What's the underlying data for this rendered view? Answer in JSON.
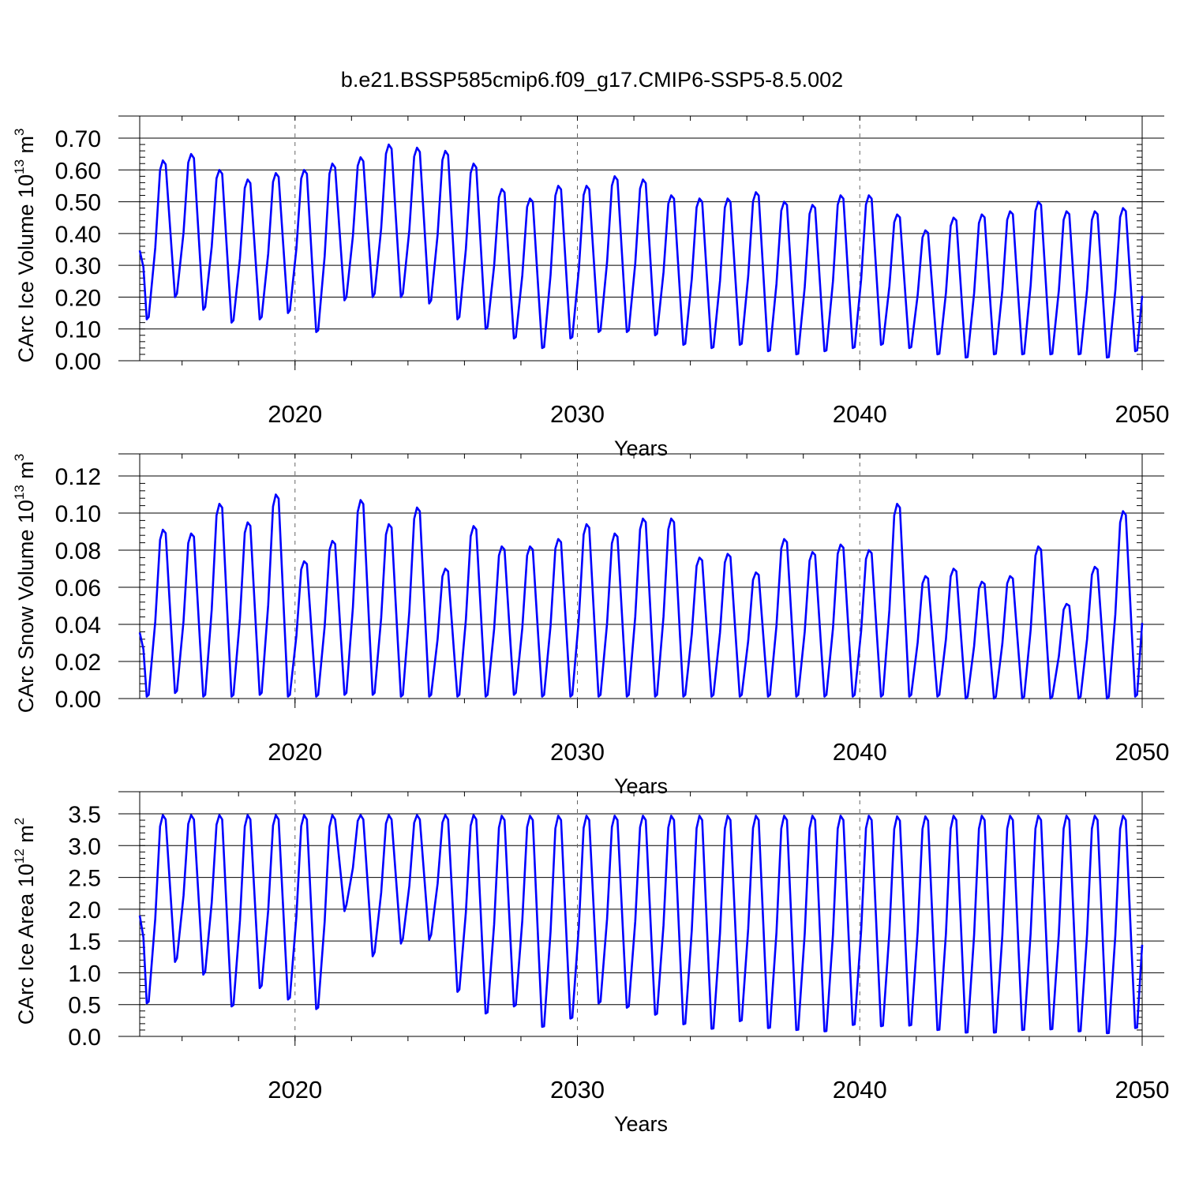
{
  "title": "b.e21.BSSP585cmip6.f09_g17.CMIP6-SSP5-8.5.002",
  "chart_data": [
    {
      "type": "line",
      "ylabel": "CArc Ice Volume",
      "ylabel_unit": "10",
      "ylabel_exp": "13",
      "ylabel_tail": " m",
      "ylabel_tail_exp": "3",
      "xlabel": "Years",
      "xlim": [
        2014.5,
        2050.0
      ],
      "ylim": [
        0.0,
        0.7
      ],
      "yticks": [
        "0.00",
        "0.10",
        "0.20",
        "0.30",
        "0.40",
        "0.50",
        "0.60",
        "0.70"
      ],
      "xticks": [
        "2020",
        "2030",
        "2040",
        "2050"
      ],
      "annual_max": [
        0.6,
        0.63,
        0.65,
        0.6,
        0.57,
        0.59,
        0.6,
        0.62,
        0.64,
        0.68,
        0.67,
        0.66,
        0.62,
        0.54,
        0.51,
        0.55,
        0.55,
        0.58,
        0.57,
        0.52,
        0.51,
        0.51,
        0.53,
        0.5,
        0.49,
        0.52,
        0.52,
        0.46,
        0.41,
        0.45,
        0.46,
        0.47,
        0.5,
        0.47,
        0.47,
        0.48
      ],
      "annual_min": [
        0.13,
        0.2,
        0.16,
        0.12,
        0.13,
        0.15,
        0.09,
        0.19,
        0.2,
        0.2,
        0.18,
        0.13,
        0.1,
        0.07,
        0.04,
        0.07,
        0.09,
        0.09,
        0.08,
        0.05,
        0.04,
        0.05,
        0.03,
        0.02,
        0.03,
        0.04,
        0.05,
        0.04,
        0.02,
        0.01,
        0.02,
        0.02,
        0.02,
        0.02,
        0.01,
        0.03
      ],
      "series_name": "CArc Ice Volume",
      "color": "#0000ff"
    },
    {
      "type": "line",
      "ylabel": "CArc Snow Volume",
      "ylabel_unit": "10",
      "ylabel_exp": "13",
      "ylabel_tail": " m",
      "ylabel_tail_exp": "3",
      "xlabel": "Years",
      "xlim": [
        2014.5,
        2050.0
      ],
      "ylim": [
        0.0,
        0.12
      ],
      "yticks": [
        "0.00",
        "0.02",
        "0.04",
        "0.06",
        "0.08",
        "0.10",
        "0.12"
      ],
      "xticks": [
        "2020",
        "2030",
        "2040",
        "2050"
      ],
      "annual_max": [
        0.074,
        0.091,
        0.089,
        0.105,
        0.095,
        0.11,
        0.074,
        0.085,
        0.107,
        0.094,
        0.103,
        0.07,
        0.093,
        0.082,
        0.082,
        0.086,
        0.094,
        0.089,
        0.097,
        0.097,
        0.076,
        0.078,
        0.068,
        0.086,
        0.079,
        0.083,
        0.08,
        0.105,
        0.066,
        0.07,
        0.063,
        0.066,
        0.082,
        0.051,
        0.071,
        0.101
      ],
      "annual_min": [
        0.001,
        0.003,
        0.001,
        0.001,
        0.002,
        0.001,
        0.001,
        0.002,
        0.002,
        0.001,
        0.001,
        0.001,
        0.001,
        0.002,
        0.001,
        0.001,
        0.001,
        0.001,
        0.001,
        0.001,
        0.001,
        0.001,
        0.001,
        0.001,
        0.001,
        0.001,
        0.001,
        0.001,
        0.001,
        0.0,
        0.0,
        0.0,
        0.0,
        0.0,
        0.0,
        0.001
      ],
      "series_name": "CArc Snow Volume",
      "color": "#0000ff"
    },
    {
      "type": "line",
      "ylabel": "CArc Ice Area",
      "ylabel_unit": "10",
      "ylabel_exp": "12",
      "ylabel_tail": " m",
      "ylabel_tail_exp": "2",
      "xlabel": "Years",
      "xlim": [
        2014.5,
        2050.0
      ],
      "ylim": [
        0.0,
        3.5
      ],
      "yticks": [
        "0.0",
        "0.5",
        "1.0",
        "1.5",
        "2.0",
        "2.5",
        "3.0",
        "3.5"
      ],
      "xticks": [
        "2020",
        "2030",
        "2040",
        "2050"
      ],
      "annual_max": [
        3.48,
        3.48,
        3.48,
        3.48,
        3.48,
        3.48,
        3.48,
        3.48,
        3.48,
        3.48,
        3.48,
        3.48,
        3.48,
        3.47,
        3.47,
        3.47,
        3.47,
        3.47,
        3.47,
        3.47,
        3.47,
        3.47,
        3.47,
        3.47,
        3.47,
        3.47,
        3.47,
        3.46,
        3.46,
        3.47,
        3.47,
        3.47,
        3.47,
        3.47,
        3.47,
        3.47
      ],
      "annual_min": [
        0.52,
        1.17,
        0.97,
        0.47,
        0.76,
        0.58,
        0.43,
        1.97,
        1.26,
        1.46,
        1.52,
        0.7,
        0.36,
        0.47,
        0.15,
        0.28,
        0.52,
        0.45,
        0.34,
        0.19,
        0.12,
        0.24,
        0.13,
        0.1,
        0.08,
        0.18,
        0.16,
        0.17,
        0.1,
        0.06,
        0.06,
        0.1,
        0.11,
        0.08,
        0.05,
        0.13
      ],
      "series_name": "CArc Ice Area",
      "color": "#0000ff"
    }
  ]
}
